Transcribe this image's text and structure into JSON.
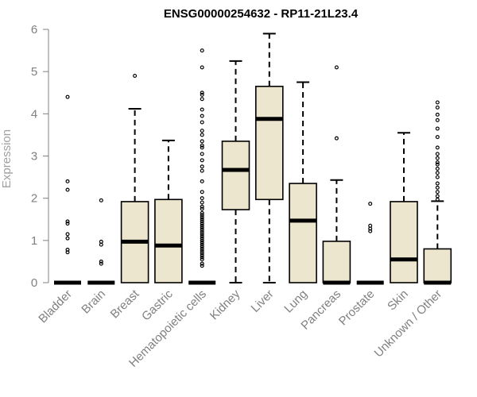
{
  "chart_data": {
    "type": "box",
    "title": "ENSG00000254632 - RP11-21L23.4",
    "xlabel": "",
    "ylabel": "Expression",
    "ylim": [
      0,
      6
    ],
    "yticks": [
      0,
      1,
      2,
      3,
      4,
      5,
      6
    ],
    "categories": [
      "Bladder",
      "Brain",
      "Breast",
      "Gastric",
      "Hematopoietic cells",
      "Kidney",
      "Liver",
      "Lung",
      "Pancreas",
      "Prostate",
      "Skin",
      "Unknown / Other"
    ],
    "box_fill": "#ede6ce",
    "box_stroke": "#000000",
    "axis_color": "#808080",
    "boxes": [
      {
        "name": "Bladder",
        "q1": 0,
        "median": 0,
        "q3": 0,
        "whisker_low": 0,
        "whisker_high": 0,
        "outliers": [
          4.4,
          2.4,
          2.2,
          1.45,
          1.4,
          1.15,
          1.05,
          0.78,
          0.72
        ]
      },
      {
        "name": "Brain",
        "q1": 0,
        "median": 0,
        "q3": 0,
        "whisker_low": 0,
        "whisker_high": 0,
        "outliers": [
          1.95,
          0.97,
          0.9,
          0.5,
          0.45
        ]
      },
      {
        "name": "Breast",
        "q1": 0,
        "median": 0.97,
        "q3": 1.92,
        "whisker_low": 0,
        "whisker_high": 4.12,
        "outliers": [
          4.9
        ]
      },
      {
        "name": "Gastric",
        "q1": 0,
        "median": 0.88,
        "q3": 1.97,
        "whisker_low": 0,
        "whisker_high": 3.37,
        "outliers": []
      },
      {
        "name": "Hematopoietic cells",
        "q1": 0,
        "median": 0,
        "q3": 0,
        "whisker_low": 0,
        "whisker_high": 0,
        "outliers": [
          5.5,
          5.1,
          4.5,
          4.45,
          4.35,
          4.1,
          3.95,
          3.8,
          3.6,
          3.5,
          3.35,
          3.25,
          3.2,
          3.05,
          2.9,
          2.75,
          2.65,
          2.4,
          2.15,
          2.0,
          1.9,
          1.8,
          1.75,
          1.65,
          1.6,
          1.55,
          1.5,
          1.45,
          1.4,
          1.35,
          1.3,
          1.25,
          1.2,
          1.15,
          1.1,
          1.05,
          1.0,
          0.95,
          0.9,
          0.85,
          0.8,
          0.75,
          0.7,
          0.65,
          0.6,
          0.55,
          0.45,
          0.4
        ]
      },
      {
        "name": "Kidney",
        "q1": 1.73,
        "median": 2.67,
        "q3": 3.35,
        "whisker_low": 0,
        "whisker_high": 5.25,
        "outliers": []
      },
      {
        "name": "Liver",
        "q1": 1.97,
        "median": 3.88,
        "q3": 4.65,
        "whisker_low": 0,
        "whisker_high": 5.9,
        "outliers": []
      },
      {
        "name": "Lung",
        "q1": 0,
        "median": 1.47,
        "q3": 2.35,
        "whisker_low": 0,
        "whisker_high": 4.75,
        "outliers": []
      },
      {
        "name": "Pancreas",
        "q1": 0,
        "median": 0,
        "q3": 0.98,
        "whisker_low": 0,
        "whisker_high": 2.43,
        "outliers": [
          5.1,
          3.42
        ]
      },
      {
        "name": "Prostate",
        "q1": 0,
        "median": 0,
        "q3": 0,
        "whisker_low": 0,
        "whisker_high": 0,
        "outliers": [
          1.87,
          1.35,
          1.28,
          1.22
        ]
      },
      {
        "name": "Skin",
        "q1": 0,
        "median": 0.55,
        "q3": 1.92,
        "whisker_low": 0,
        "whisker_high": 3.55,
        "outliers": []
      },
      {
        "name": "Unknown / Other",
        "q1": 0,
        "median": 0,
        "q3": 0.8,
        "whisker_low": 0,
        "whisker_high": 1.93,
        "outliers": [
          4.27,
          4.15,
          3.98,
          3.85,
          3.65,
          3.45,
          3.2,
          3.05,
          2.95,
          2.85,
          2.8,
          2.7,
          2.6,
          2.5,
          2.35,
          2.25,
          2.15,
          2.05,
          1.97
        ]
      }
    ]
  }
}
